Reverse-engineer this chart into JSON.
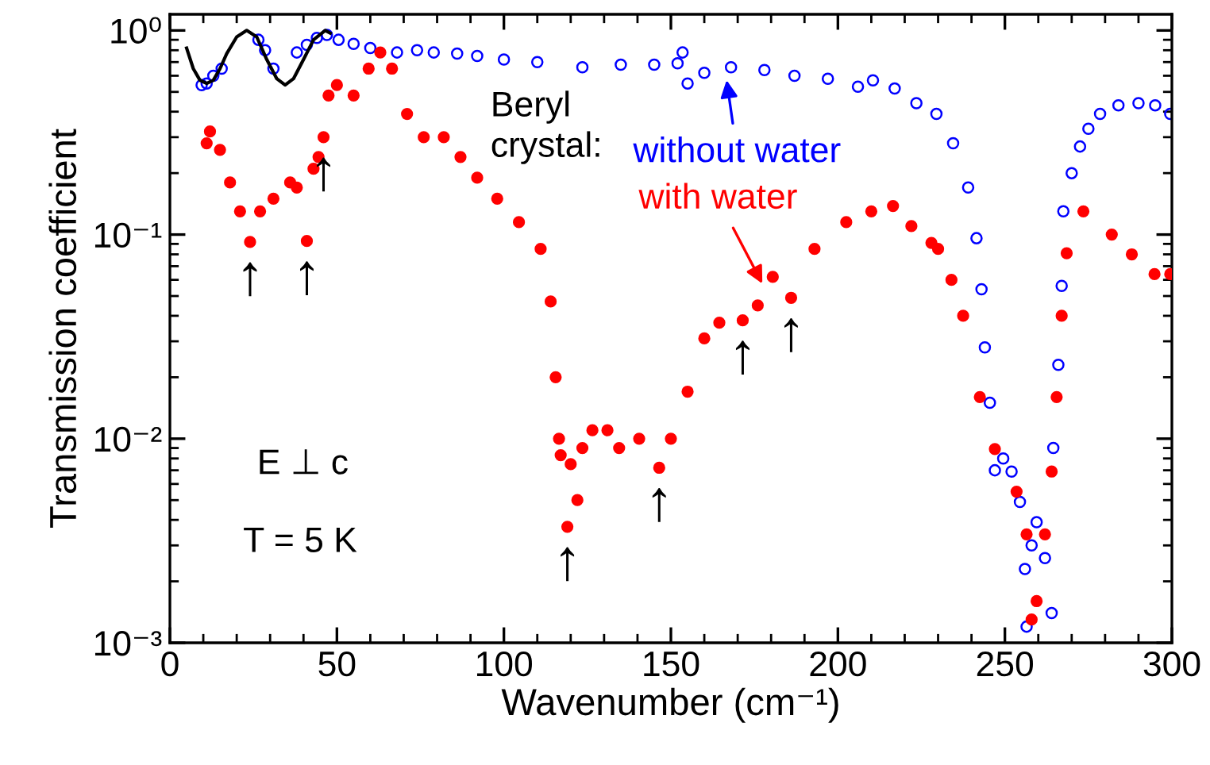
{
  "chart_data": {
    "type": "scatter",
    "xlabel": "Wavenumber (cm⁻¹)",
    "ylabel": "Transmission coefficient",
    "log": "y",
    "xlim": [
      0,
      300
    ],
    "ylim": [
      0.001,
      1.2
    ],
    "xticks": [
      0,
      50,
      100,
      150,
      200,
      250,
      300
    ],
    "yticks": [
      {
        "value": 0.001,
        "label": "10⁻³"
      },
      {
        "value": 0.01,
        "label": "10⁻²"
      },
      {
        "value": 0.1,
        "label": "10⁻¹"
      },
      {
        "value": 1,
        "label": "10⁰"
      }
    ],
    "grid": false,
    "legend": false,
    "series": [
      {
        "marker": "circle",
        "color": "#0000ff",
        "x": [
          9.5,
          11,
          13,
          15.5,
          26.5,
          28.5,
          31,
          38,
          41,
          44,
          47,
          50.5,
          55,
          60,
          68,
          74,
          79,
          86,
          92,
          100,
          110,
          123.5,
          135,
          145,
          152,
          153.5,
          155,
          160,
          168,
          178,
          187,
          197,
          206,
          210.5,
          217,
          223.5,
          229.5,
          234.5,
          239,
          241.5,
          243,
          244,
          245.5,
          247,
          249.5,
          252,
          254.5,
          256,
          256.5,
          258,
          259.5,
          262,
          264,
          264.5,
          266,
          267,
          267.5,
          270,
          272.5,
          275,
          278.5,
          284,
          290,
          295,
          299.5
        ],
        "values": [
          0.54,
          0.55,
          0.6,
          0.65,
          0.9,
          0.8,
          0.65,
          0.78,
          0.85,
          0.92,
          0.95,
          0.9,
          0.86,
          0.82,
          0.78,
          0.8,
          0.78,
          0.77,
          0.75,
          0.72,
          0.7,
          0.66,
          0.68,
          0.68,
          0.69,
          0.78,
          0.55,
          0.62,
          0.66,
          0.64,
          0.6,
          0.58,
          0.53,
          0.57,
          0.52,
          0.44,
          0.39,
          0.28,
          0.17,
          0.096,
          0.054,
          0.028,
          0.015,
          0.007,
          0.008,
          0.0069,
          0.0049,
          0.0023,
          0.0012,
          0.003,
          0.0039,
          0.0026,
          0.0014,
          0.009,
          0.023,
          0.056,
          0.13,
          0.2,
          0.27,
          0.33,
          0.39,
          0.43,
          0.44,
          0.43,
          0.39
        ]
      },
      {
        "marker": "circle",
        "color": "#ff0000",
        "x": [
          11,
          12,
          15,
          18,
          21,
          24,
          27,
          31,
          36,
          38,
          41,
          43,
          44.5,
          46,
          47.5,
          50,
          55,
          59.5,
          63,
          66.5,
          71,
          76,
          82,
          87,
          92,
          98,
          104.5,
          111,
          114,
          115.5,
          116.5,
          117,
          119,
          120,
          122,
          123.5,
          126.5,
          131,
          134.5,
          140.5,
          146.5,
          150,
          155,
          160,
          164.5,
          171.5,
          176,
          180.5,
          186,
          193,
          202.5,
          210,
          216.5,
          222,
          228,
          230,
          234,
          237.5,
          242.5,
          247,
          253.5,
          256.5,
          258,
          259.5,
          262,
          264,
          265.5,
          267,
          268.5,
          273.5,
          282,
          288,
          294.8,
          299.5
        ],
        "values": [
          0.28,
          0.32,
          0.26,
          0.18,
          0.13,
          0.092,
          0.13,
          0.15,
          0.18,
          0.17,
          0.093,
          0.21,
          0.24,
          0.3,
          0.48,
          0.54,
          0.48,
          0.65,
          0.78,
          0.65,
          0.39,
          0.3,
          0.3,
          0.24,
          0.19,
          0.15,
          0.115,
          0.085,
          0.047,
          0.02,
          0.01,
          0.0083,
          0.0037,
          0.0075,
          0.005,
          0.009,
          0.011,
          0.011,
          0.009,
          0.01,
          0.0072,
          0.01,
          0.017,
          0.031,
          0.037,
          0.038,
          0.045,
          0.062,
          0.049,
          0.085,
          0.115,
          0.13,
          0.138,
          0.11,
          0.091,
          0.085,
          0.06,
          0.04,
          0.016,
          0.0089,
          0.0055,
          0.0034,
          0.0013,
          0.0016,
          0.0034,
          0.0069,
          0.016,
          0.04,
          0.081,
          0.13,
          0.1,
          0.08,
          0.064,
          0.064
        ]
      },
      {
        "type": "line",
        "marker": "none",
        "color": "#000000",
        "x": [
          5,
          7,
          9,
          11,
          13,
          15,
          17,
          20,
          23,
          26,
          29,
          32,
          34.5,
          37,
          40,
          43,
          46.5,
          48
        ],
        "values": [
          0.82,
          0.65,
          0.57,
          0.55,
          0.57,
          0.65,
          0.77,
          0.93,
          1.0,
          0.93,
          0.72,
          0.58,
          0.54,
          0.58,
          0.72,
          0.9,
          1.0,
          0.97
        ]
      }
    ],
    "annotations": [
      "Beryl\ncrystal:",
      {
        "text": "without water",
        "x": 166.5,
        "y": 0.6
      },
      {
        "text": "with water",
        "x": 178,
        "y": 0.055
      },
      "E ⊥ c",
      "T = 5 K",
      {
        "text": "↑",
        "x": 24,
        "y": 0.092
      },
      {
        "text": "↑",
        "x": 41,
        "y": 0.093
      },
      {
        "text": "↑",
        "x": 46,
        "y": 0.3
      },
      {
        "text": "↑",
        "x": 119,
        "y": 0.0037
      },
      {
        "text": "↑",
        "x": 146.5,
        "y": 0.0072
      },
      {
        "text": "↑",
        "x": 171.5,
        "y": 0.038
      },
      {
        "text": "↑",
        "x": 186,
        "y": 0.049
      }
    ]
  }
}
